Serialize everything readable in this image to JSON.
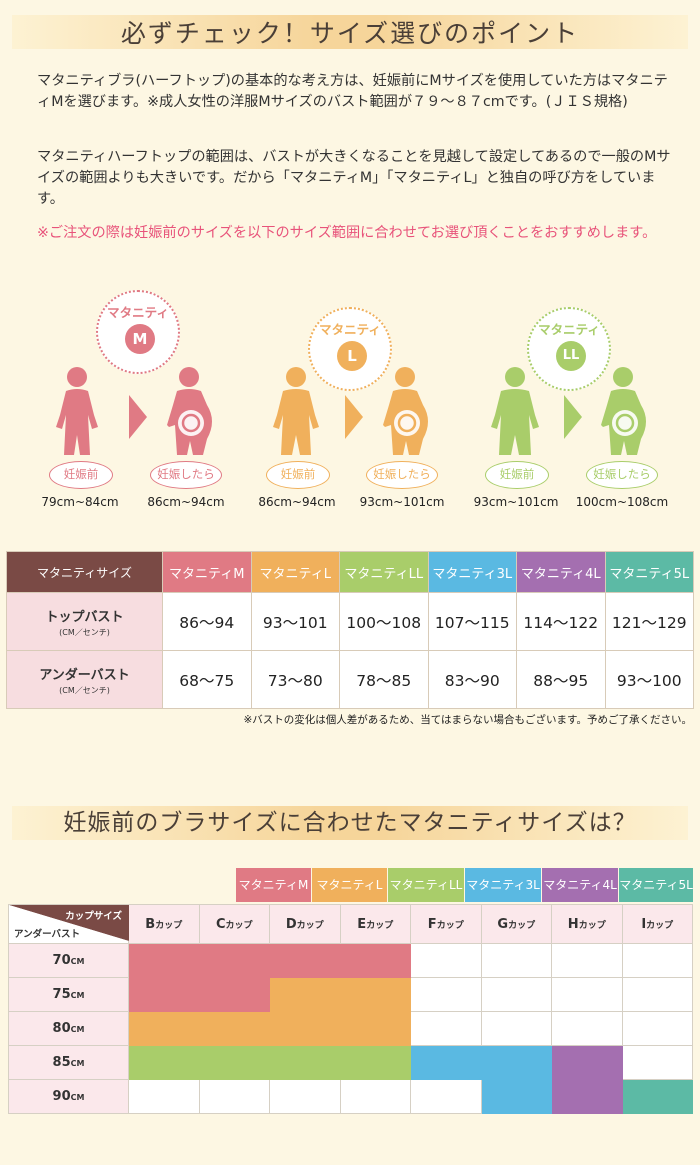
{
  "section1": {
    "title": "必ずチェック！サイズ選びのポイント",
    "para1": "マタニティブラ(ハーフトップ)の基本的な考え方は、妊娠前にMサイズを使用していた方はマタニティMを選びます。※成人女性の洋服Mサイズのバスト範囲が７９～８７cmです。(ＪＩＳ規格)",
    "para2": "マタニティハーフトップの範囲は、バストが大きくなることを見越して設定してあるので一般のMサイズの範囲よりも大きいです。だから「マタニティM」「マタニティL」と独自の呼び方をしています。",
    "para3": "※ご注文の際は妊娠前のサイズを以下のサイズ範囲に合わせてお選び頂くことをおすすめします。"
  },
  "figures": [
    {
      "circle_label": "マタニティ",
      "badge": "M",
      "color": "#e07a84",
      "before_label": "妊娠前",
      "after_label": "妊娠したら",
      "before_range": "79cm~84cm",
      "after_range": "86cm~94cm"
    },
    {
      "circle_label": "マタニティ",
      "badge": "L",
      "color": "#f0b05c",
      "before_label": "妊娠前",
      "after_label": "妊娠したら",
      "before_range": "86cm~94cm",
      "after_range": "93cm~101cm"
    },
    {
      "circle_label": "マタニティ",
      "badge": "LL",
      "color": "#a9cd6a",
      "before_label": "妊娠前",
      "after_label": "妊娠したら",
      "before_range": "93cm~101cm",
      "after_range": "100cm~108cm"
    }
  ],
  "table1": {
    "corner": "マタニティサイズ",
    "headers": [
      "マタニティM",
      "マタニティL",
      "マタニティLL",
      "マタニティ3L",
      "マタニティ4L",
      "マタニティ5L"
    ],
    "rows": [
      {
        "label": "トップバスト",
        "unit": "(CM／センチ)",
        "values": [
          "86～94",
          "93～101",
          "100～108",
          "107～115",
          "114～122",
          "121～129"
        ]
      },
      {
        "label": "アンダーバスト",
        "unit": "(CM／センチ)",
        "values": [
          "68～75",
          "73～80",
          "78～85",
          "83～90",
          "88～95",
          "93～100"
        ]
      }
    ],
    "note": "※バストの変化は個人差があるため、当てはまらない場合もございます。予めご了承ください。"
  },
  "section2": {
    "title": "妊娠前のブラサイズに合わせたマタニティサイズは？"
  },
  "table2": {
    "legend": [
      "マタニティM",
      "マタニティL",
      "マタニティLL",
      "マタニティ3L",
      "マタニティ4L",
      "マタニティ5L"
    ],
    "corner_top": "カップサイズ",
    "corner_bottom": "アンダーバスト",
    "cups": [
      {
        "letter": "B",
        "suffix": "カップ"
      },
      {
        "letter": "C",
        "suffix": "カップ"
      },
      {
        "letter": "D",
        "suffix": "カップ"
      },
      {
        "letter": "E",
        "suffix": "カップ"
      },
      {
        "letter": "F",
        "suffix": "カップ"
      },
      {
        "letter": "G",
        "suffix": "カップ"
      },
      {
        "letter": "H",
        "suffix": "カップ"
      },
      {
        "letter": "I",
        "suffix": "カップ"
      }
    ],
    "rows": [
      {
        "num": "70",
        "unit": "CM",
        "cells": [
          "M",
          "M",
          "M",
          "M",
          "",
          "",
          "",
          ""
        ]
      },
      {
        "num": "75",
        "unit": "CM",
        "cells": [
          "M",
          "M",
          "L",
          "L",
          "",
          "",
          "",
          ""
        ]
      },
      {
        "num": "80",
        "unit": "CM",
        "cells": [
          "L",
          "L",
          "L",
          "L",
          "",
          "",
          "",
          ""
        ]
      },
      {
        "num": "85",
        "unit": "CM",
        "cells": [
          "LL",
          "LL",
          "LL",
          "LL",
          "3L",
          "3L",
          "4L",
          ""
        ]
      },
      {
        "num": "90",
        "unit": "CM",
        "cells": [
          "",
          "",
          "",
          "",
          "",
          "3L",
          "4L",
          "5L"
        ]
      }
    ]
  },
  "colors": {
    "M": "#e07a84",
    "L": "#f0b05c",
    "LL": "#a9cd6a",
    "3L": "#5ab9e2",
    "4L": "#a46fb0",
    "5L": "#5cbaa5",
    "header_brown": "#7a4a45",
    "pink_text": "#e8537a",
    "background": "#fdf7e3"
  }
}
